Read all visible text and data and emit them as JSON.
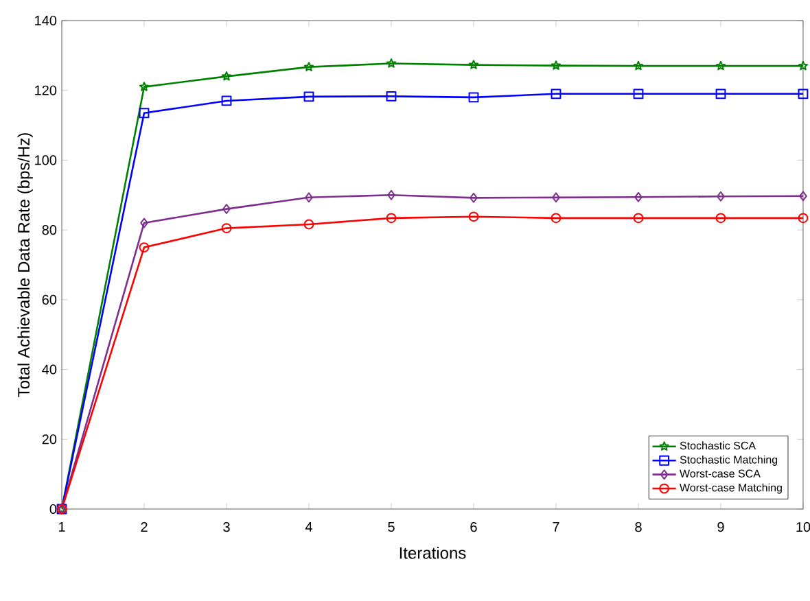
{
  "chart_data": {
    "type": "line",
    "xlabel": "Iterations",
    "ylabel": "Total Achievable Data Rate (bps/Hz)",
    "x": [
      1,
      2,
      3,
      4,
      5,
      6,
      7,
      8,
      9,
      10
    ],
    "series": [
      {
        "name": "Stochastic SCA",
        "color": "#008000",
        "marker": "star",
        "values": [
          0,
          121,
          124,
          126.7,
          127.7,
          127.3,
          127.1,
          127,
          127,
          127
        ]
      },
      {
        "name": "Stochastic Matching",
        "color": "#0000ff",
        "marker": "square",
        "values": [
          0,
          113.5,
          117,
          118.2,
          118.3,
          118,
          119,
          119,
          119,
          119
        ]
      },
      {
        "name": "Worst-case SCA",
        "color": "#7e2f8e",
        "marker": "diamond",
        "values": [
          0,
          82,
          86,
          89.3,
          90,
          89.2,
          89.3,
          89.4,
          89.6,
          89.7
        ]
      },
      {
        "name": "Worst-case Matching",
        "color": "#ff0000",
        "marker": "circle",
        "values": [
          0,
          75,
          80.5,
          81.6,
          83.4,
          83.8,
          83.4,
          83.4,
          83.4,
          83.4
        ]
      }
    ],
    "xlim": [
      1,
      10
    ],
    "ylim": [
      0,
      140
    ],
    "xticks": [
      1,
      2,
      3,
      4,
      5,
      6,
      7,
      8,
      9,
      10
    ],
    "yticks": [
      0,
      20,
      40,
      60,
      80,
      100,
      120,
      140
    ],
    "grid": false,
    "legend": "bottom right",
    "line_style": "solid"
  }
}
